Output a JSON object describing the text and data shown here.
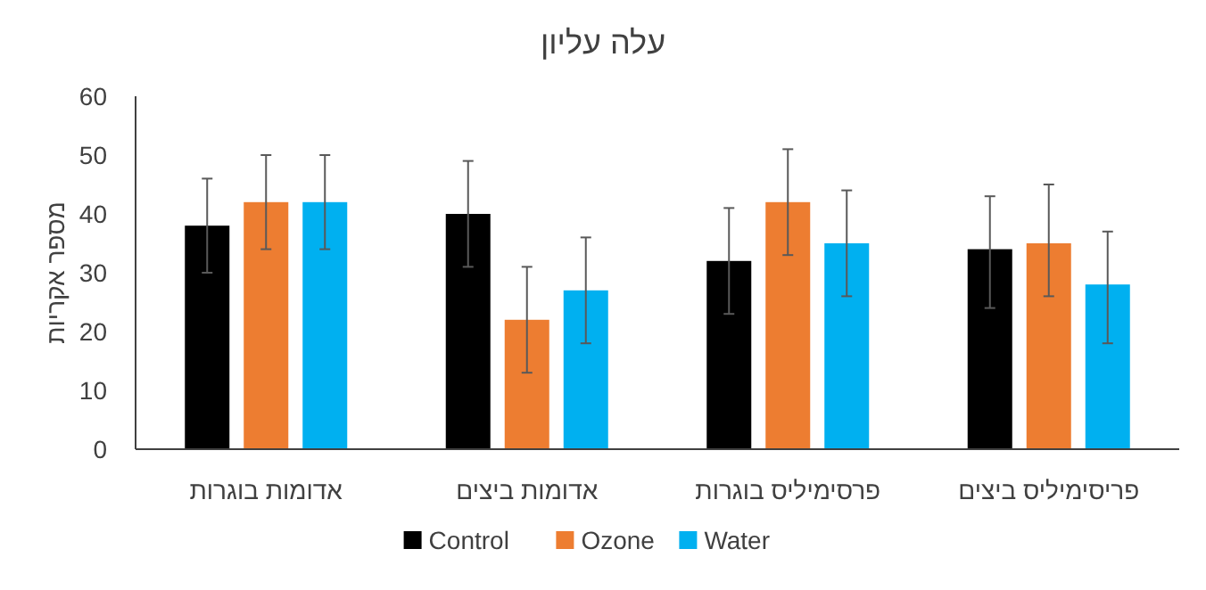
{
  "chart_data": {
    "type": "bar",
    "title": "עלה עליון",
    "ylabel": "מספר אקריות",
    "categories": [
      "אדומות בוגרות",
      "אדומות ביצים",
      "פרסימיליס בוגרות",
      "פריסימיליס ביצים"
    ],
    "series": [
      {
        "name": "Control",
        "color": "#000000",
        "values": [
          38,
          40,
          32,
          34
        ],
        "errors": [
          [
            30,
            46
          ],
          [
            31,
            49
          ],
          [
            23,
            41
          ],
          [
            24,
            43
          ]
        ]
      },
      {
        "name": "Ozone",
        "color": "#ed7d31",
        "values": [
          42,
          22,
          42,
          35
        ],
        "errors": [
          [
            34,
            50
          ],
          [
            13,
            31
          ],
          [
            33,
            51
          ],
          [
            26,
            45
          ]
        ]
      },
      {
        "name": "Water",
        "color": "#00b0f0",
        "values": [
          42,
          27,
          35,
          28
        ],
        "errors": [
          [
            34,
            50
          ],
          [
            18,
            36
          ],
          [
            26,
            44
          ],
          [
            18,
            37
          ]
        ]
      }
    ],
    "ylim": [
      0,
      60
    ],
    "yticks": [
      0,
      10,
      20,
      30,
      40,
      50,
      60
    ],
    "grid": false,
    "legend": "bottom"
  }
}
